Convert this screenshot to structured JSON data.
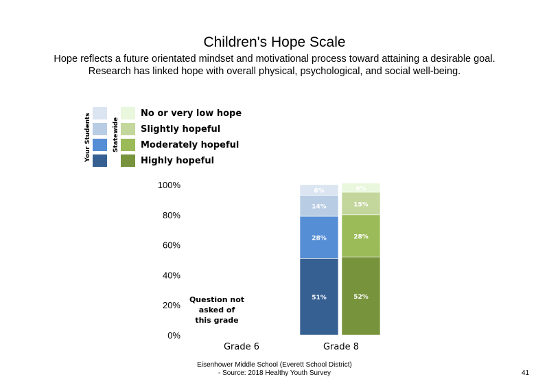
{
  "title": "Children's Hope Scale",
  "subtitle_lines": [
    "Hope reflects a future orientated mindset and motivational process toward attaining a desirable goal.",
    "Research has linked hope with overall physical, psychological, and social well-being."
  ],
  "legend": {
    "group_labels": {
      "your_students": "Your Students",
      "statewide": "Statewide"
    },
    "items": [
      {
        "label": "No or very low hope"
      },
      {
        "label": "Slightly hopeful"
      },
      {
        "label": "Moderately hopeful"
      },
      {
        "label": "Highly hopeful"
      }
    ]
  },
  "colors": {
    "your_students": [
      "#dbe5f1",
      "#b8cce4",
      "#558ed5",
      "#376092"
    ],
    "statewide": [
      "#e9f7dd",
      "#c3d69b",
      "#9bbb59",
      "#77933c"
    ]
  },
  "chart_data": {
    "type": "bar",
    "stacked": true,
    "categories": [
      "Grade 6",
      "Grade 8"
    ],
    "y_ticks": [
      "0%",
      "20%",
      "40%",
      "60%",
      "80%",
      "100%"
    ],
    "ylim": [
      0,
      100
    ],
    "grid": false,
    "series": [
      {
        "name": "Your Students",
        "stack_order": [
          "Highly hopeful",
          "Moderately hopeful",
          "Slightly hopeful",
          "No or very low hope"
        ],
        "values_by_category": [
          null,
          [
            51,
            28,
            14,
            6
          ]
        ],
        "labels_by_category": [
          null,
          [
            "51%",
            "28%",
            "14%",
            "6%"
          ]
        ]
      },
      {
        "name": "Statewide",
        "stack_order": [
          "Highly hopeful",
          "Moderately hopeful",
          "Slightly hopeful",
          "No or very low hope"
        ],
        "values_by_category": [
          null,
          [
            52,
            28,
            15,
            6
          ]
        ],
        "labels_by_category": [
          null,
          [
            "52%",
            "28%",
            "15%",
            "6%"
          ]
        ]
      }
    ],
    "annotations": [
      {
        "category": "Grade 6",
        "lines": [
          "Question not",
          "asked of",
          "this grade"
        ]
      }
    ]
  },
  "footer": {
    "line1": "Eisenhower Middle School (Everett School District)",
    "line2": "- Source: 2018 Healthy  Youth Survey"
  },
  "page_number": "41"
}
